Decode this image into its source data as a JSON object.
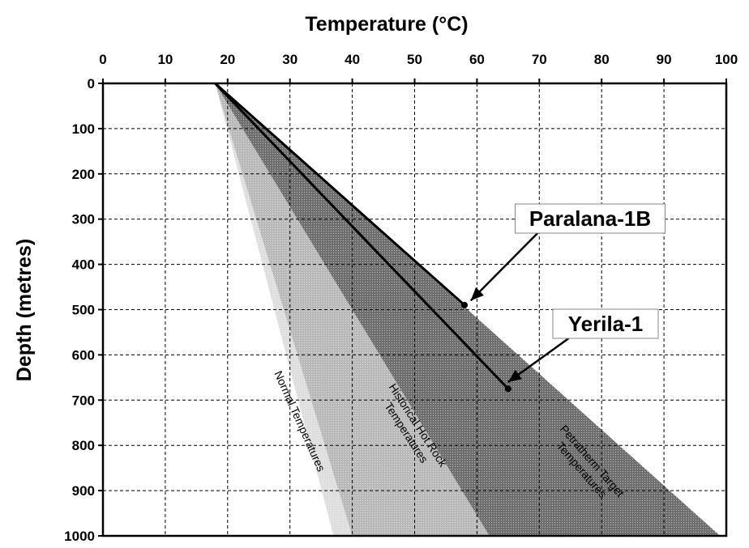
{
  "chart_data": {
    "type": "line",
    "xlabel": "Temperature (°C)",
    "ylabel": "Depth (metres)",
    "xlim": [
      0,
      100
    ],
    "ylim": [
      0,
      1000
    ],
    "y_inverted": true,
    "x_axis_position": "top",
    "x_ticks": [
      0,
      10,
      20,
      30,
      40,
      50,
      60,
      70,
      80,
      90,
      100
    ],
    "y_ticks": [
      0,
      100,
      200,
      300,
      400,
      500,
      600,
      700,
      800,
      900,
      1000
    ],
    "grid": true,
    "grid_style": "dashed",
    "surface_temperature": 18,
    "bands": [
      {
        "label": "Normal Temperatures",
        "at_1000m": [
          37,
          40
        ],
        "color": "#dedede",
        "label_lines": [
          "Normal Temperatures"
        ]
      },
      {
        "label": "Historical Hot Rock Temperatures",
        "at_1000m": [
          40,
          62
        ],
        "color": "#b9b9b9",
        "label_lines": [
          "Historical Hot Rock",
          "Temperatures"
        ]
      },
      {
        "label": "Petratherm Target Temperatures",
        "at_1000m": [
          62,
          99
        ],
        "color": "#6e6e6e",
        "label_lines": [
          "Petratherm Target",
          "Temperatures"
        ]
      }
    ],
    "series": [
      {
        "name": "Paralana-1B",
        "x": [
          18,
          58
        ],
        "y": [
          0,
          490
        ],
        "color": "#000000"
      },
      {
        "name": "Yerila-1",
        "x": [
          18,
          65
        ],
        "y": [
          0,
          675
        ],
        "color": "#000000"
      }
    ],
    "annotations": [
      {
        "text": "Paralana-1B",
        "arrow_to": {
          "x": 59,
          "y": 480
        }
      },
      {
        "text": "Yerila-1",
        "arrow_to": {
          "x": 65,
          "y": 660
        }
      }
    ]
  }
}
